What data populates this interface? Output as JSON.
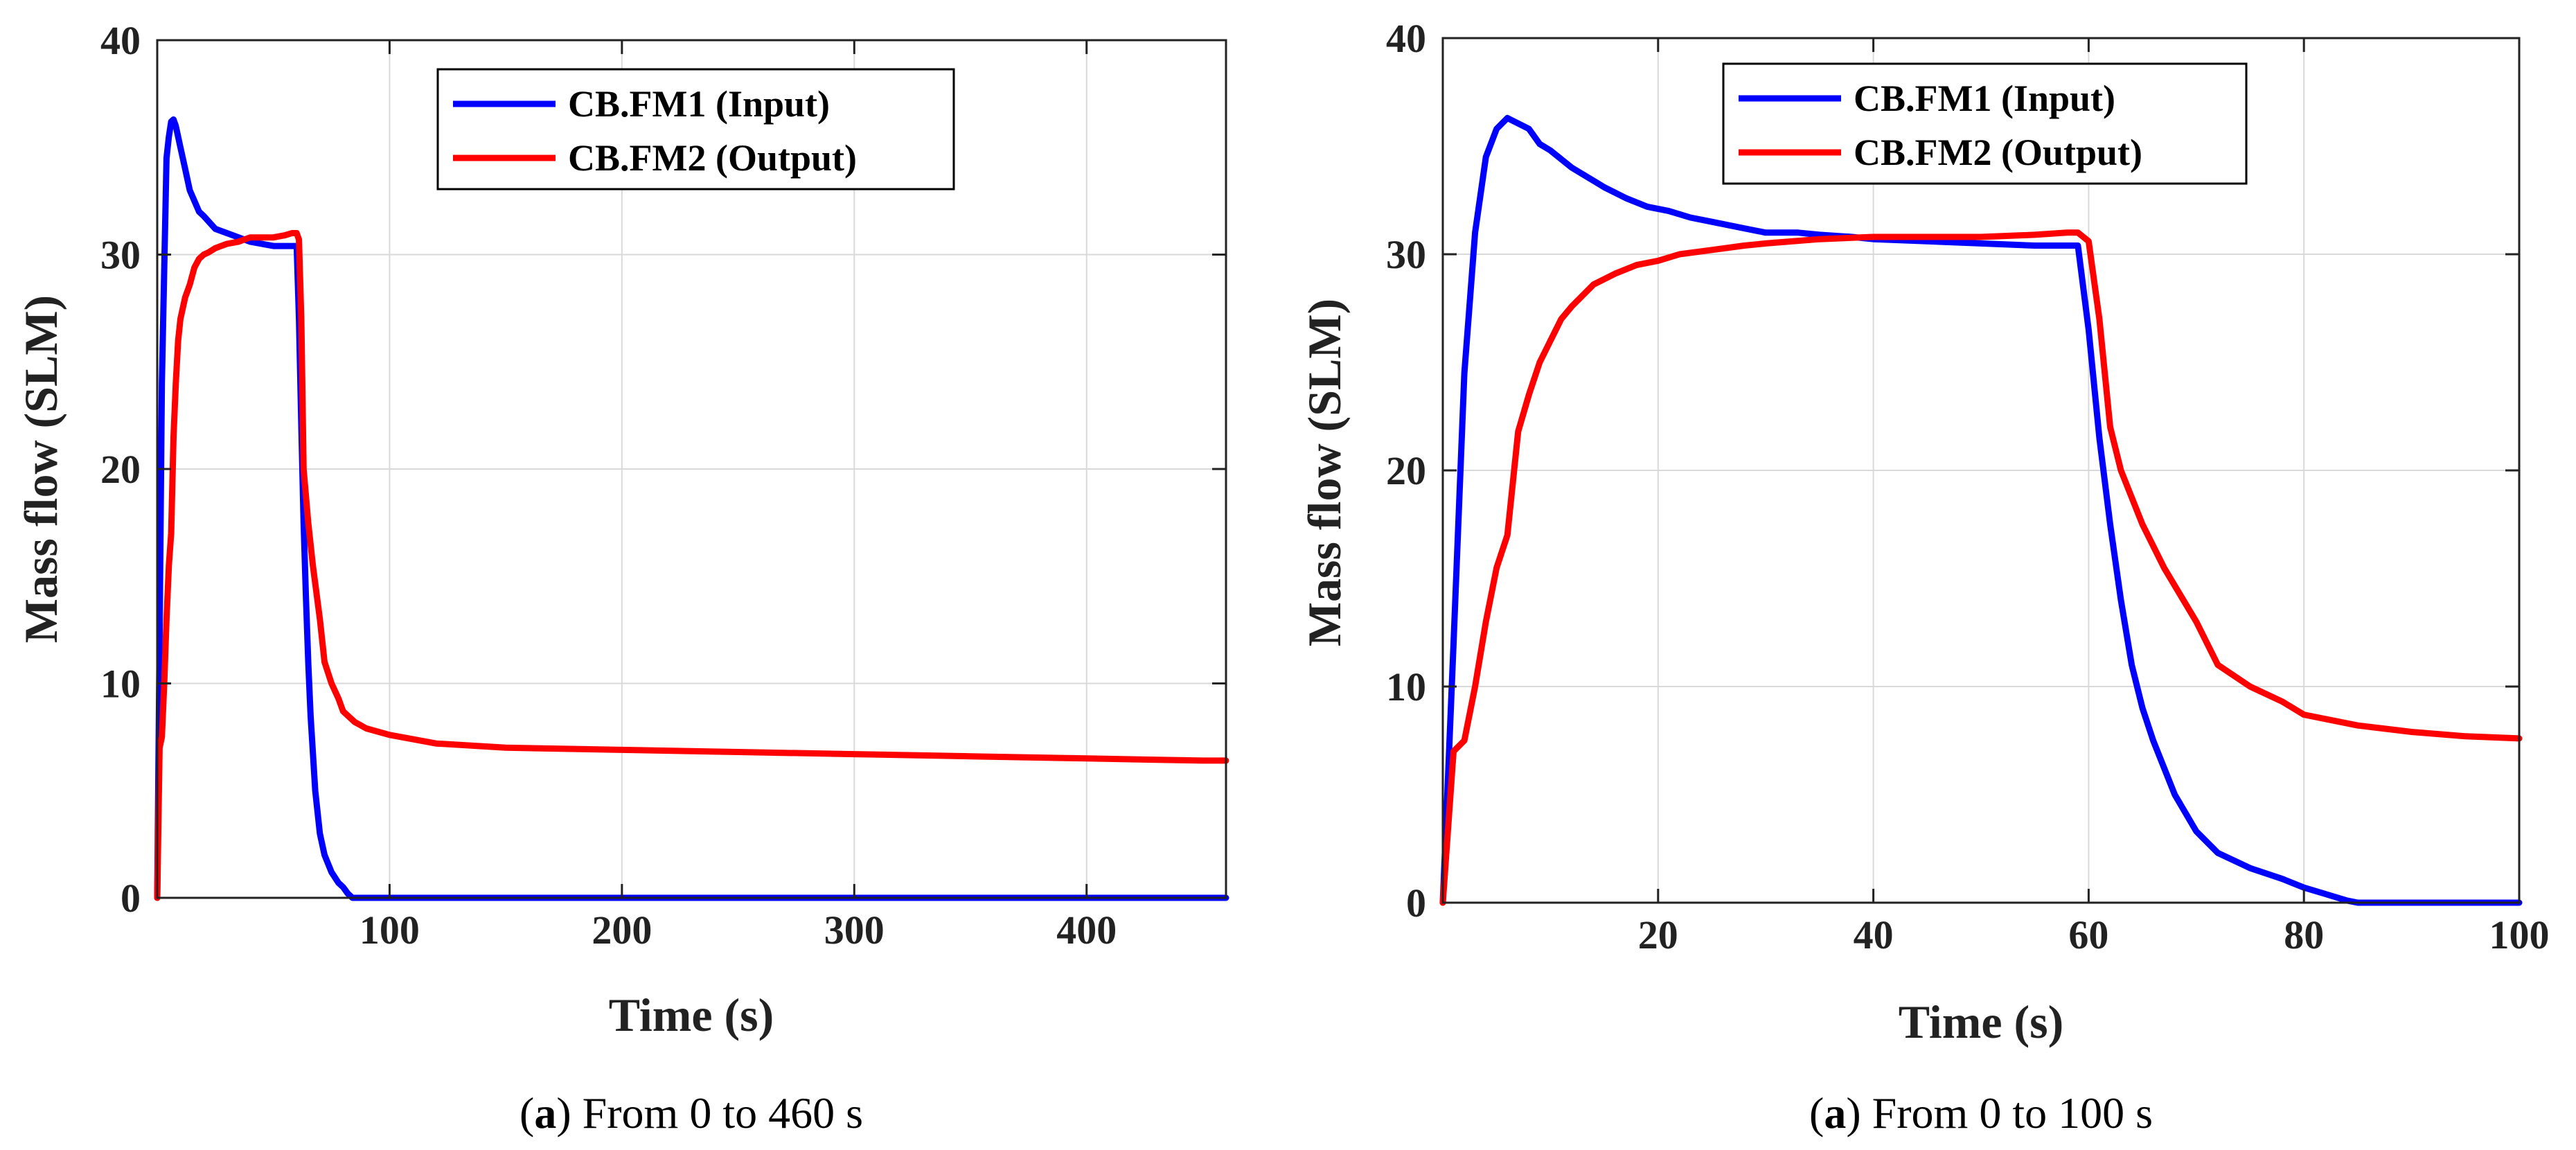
{
  "chart_data": [
    {
      "type": "line",
      "caption": {
        "letter": "a",
        "text": "From 0 to 460 s"
      },
      "xlabel": "Time (s)",
      "ylabel": "Mass flow (SLM)",
      "xlim": [
        0,
        460
      ],
      "ylim": [
        0,
        40
      ],
      "xticks": [
        100,
        200,
        300,
        400
      ],
      "xtick_labels": [
        "100",
        "200",
        "300",
        "400"
      ],
      "yticks": [
        0,
        10,
        20,
        30,
        40
      ],
      "ytick_labels": [
        "0",
        "10",
        "20",
        "30",
        "40"
      ],
      "grid": true,
      "legend_position": "top-center",
      "series": [
        {
          "name": "CB.FM1 (Input)",
          "color": "#0000ff",
          "x": [
            0,
            2,
            4,
            5,
            6,
            7,
            8,
            10,
            12,
            14,
            16,
            18,
            20,
            25,
            30,
            35,
            40,
            45,
            50,
            55,
            58,
            60,
            61,
            62,
            63,
            64,
            65,
            66,
            68,
            70,
            72,
            75,
            78,
            80,
            82,
            84,
            85,
            100,
            200,
            300,
            400,
            460
          ],
          "y": [
            0,
            24,
            34.5,
            35.5,
            36.2,
            36.3,
            36,
            35,
            34,
            33,
            32.5,
            32,
            31.8,
            31.2,
            31,
            30.8,
            30.6,
            30.5,
            30.4,
            30.4,
            30.4,
            30.4,
            27,
            22,
            17.5,
            14,
            11,
            8.5,
            5,
            3,
            2,
            1.2,
            0.7,
            0.5,
            0.2,
            0,
            0,
            0,
            0,
            0,
            0,
            0
          ]
        },
        {
          "name": "CB.FM2 (Output)",
          "color": "#ff0000",
          "x": [
            0,
            1,
            2,
            3,
            4,
            5,
            6,
            7,
            8,
            9,
            10,
            12,
            14,
            16,
            18,
            20,
            22,
            25,
            30,
            35,
            40,
            45,
            50,
            55,
            58,
            60,
            61,
            62,
            63,
            65,
            67,
            70,
            72,
            75,
            78,
            80,
            85,
            90,
            100,
            120,
            150,
            200,
            250,
            300,
            350,
            400,
            450,
            460
          ],
          "y": [
            0,
            7,
            7.5,
            10,
            13,
            15.5,
            17,
            21.5,
            24,
            26,
            27,
            28,
            28.6,
            29.4,
            29.8,
            30,
            30.1,
            30.3,
            30.5,
            30.6,
            30.8,
            30.8,
            30.8,
            30.9,
            31,
            31,
            30.7,
            27,
            20,
            17.5,
            15.5,
            13,
            11,
            10,
            9.3,
            8.7,
            8.2,
            7.9,
            7.6,
            7.2,
            7.0,
            6.9,
            6.8,
            6.7,
            6.6,
            6.5,
            6.4,
            6.4
          ]
        }
      ]
    },
    {
      "type": "line",
      "caption": {
        "letter": "a",
        "text": "From 0 to 100 s"
      },
      "xlabel": "Time (s)",
      "ylabel": "Mass flow (SLM)",
      "xlim": [
        0,
        100
      ],
      "ylim": [
        0,
        40
      ],
      "xticks": [
        20,
        40,
        60,
        80,
        100
      ],
      "xtick_labels": [
        "20",
        "40",
        "60",
        "80",
        "100"
      ],
      "yticks": [
        0,
        10,
        20,
        30,
        40
      ],
      "ytick_labels": [
        "0",
        "10",
        "20",
        "30",
        "40"
      ],
      "grid": true,
      "legend_position": "top-center",
      "series": [
        {
          "name": "CB.FM1 (Input)",
          "color": "#0000ff",
          "x": [
            0,
            1,
            2,
            3,
            4,
            5,
            6,
            8,
            9,
            10,
            12,
            14,
            15,
            17,
            19,
            21,
            23,
            25,
            28,
            30,
            33,
            35,
            38,
            40,
            45,
            50,
            55,
            58,
            59,
            60,
            61,
            62,
            63,
            64,
            65,
            66,
            68,
            70,
            72,
            75,
            78,
            80,
            82,
            84,
            85,
            90,
            100
          ],
          "y": [
            0,
            12,
            24.5,
            31,
            34.5,
            35.8,
            36.3,
            35.8,
            35.1,
            34.8,
            34,
            33.4,
            33.1,
            32.6,
            32.2,
            32.0,
            31.7,
            31.5,
            31.2,
            31.0,
            31.0,
            30.9,
            30.8,
            30.7,
            30.6,
            30.5,
            30.4,
            30.4,
            30.4,
            26.5,
            21.5,
            17.5,
            14.0,
            11,
            9,
            7.5,
            5.0,
            3.3,
            2.3,
            1.6,
            1.1,
            0.7,
            0.4,
            0.1,
            0,
            0,
            0
          ]
        },
        {
          "name": "CB.FM2 (Output)",
          "color": "#ff0000",
          "x": [
            0,
            1,
            2,
            3,
            4,
            5,
            6,
            7,
            8,
            9,
            10,
            11,
            12,
            14,
            16,
            18,
            20,
            22,
            25,
            28,
            30,
            35,
            40,
            45,
            50,
            55,
            58,
            59,
            60,
            61,
            62,
            63,
            65,
            67,
            70,
            72,
            75,
            78,
            80,
            85,
            90,
            95,
            100
          ],
          "y": [
            0,
            7,
            7.5,
            10,
            13,
            15.5,
            17,
            21.8,
            23.5,
            25,
            26,
            27,
            27.6,
            28.6,
            29.1,
            29.5,
            29.7,
            30.0,
            30.2,
            30.4,
            30.5,
            30.7,
            30.8,
            30.8,
            30.8,
            30.9,
            31,
            31,
            30.6,
            27,
            22,
            20,
            17.5,
            15.5,
            13,
            11,
            10,
            9.3,
            8.7,
            8.2,
            7.9,
            7.7,
            7.6
          ]
        }
      ]
    }
  ]
}
